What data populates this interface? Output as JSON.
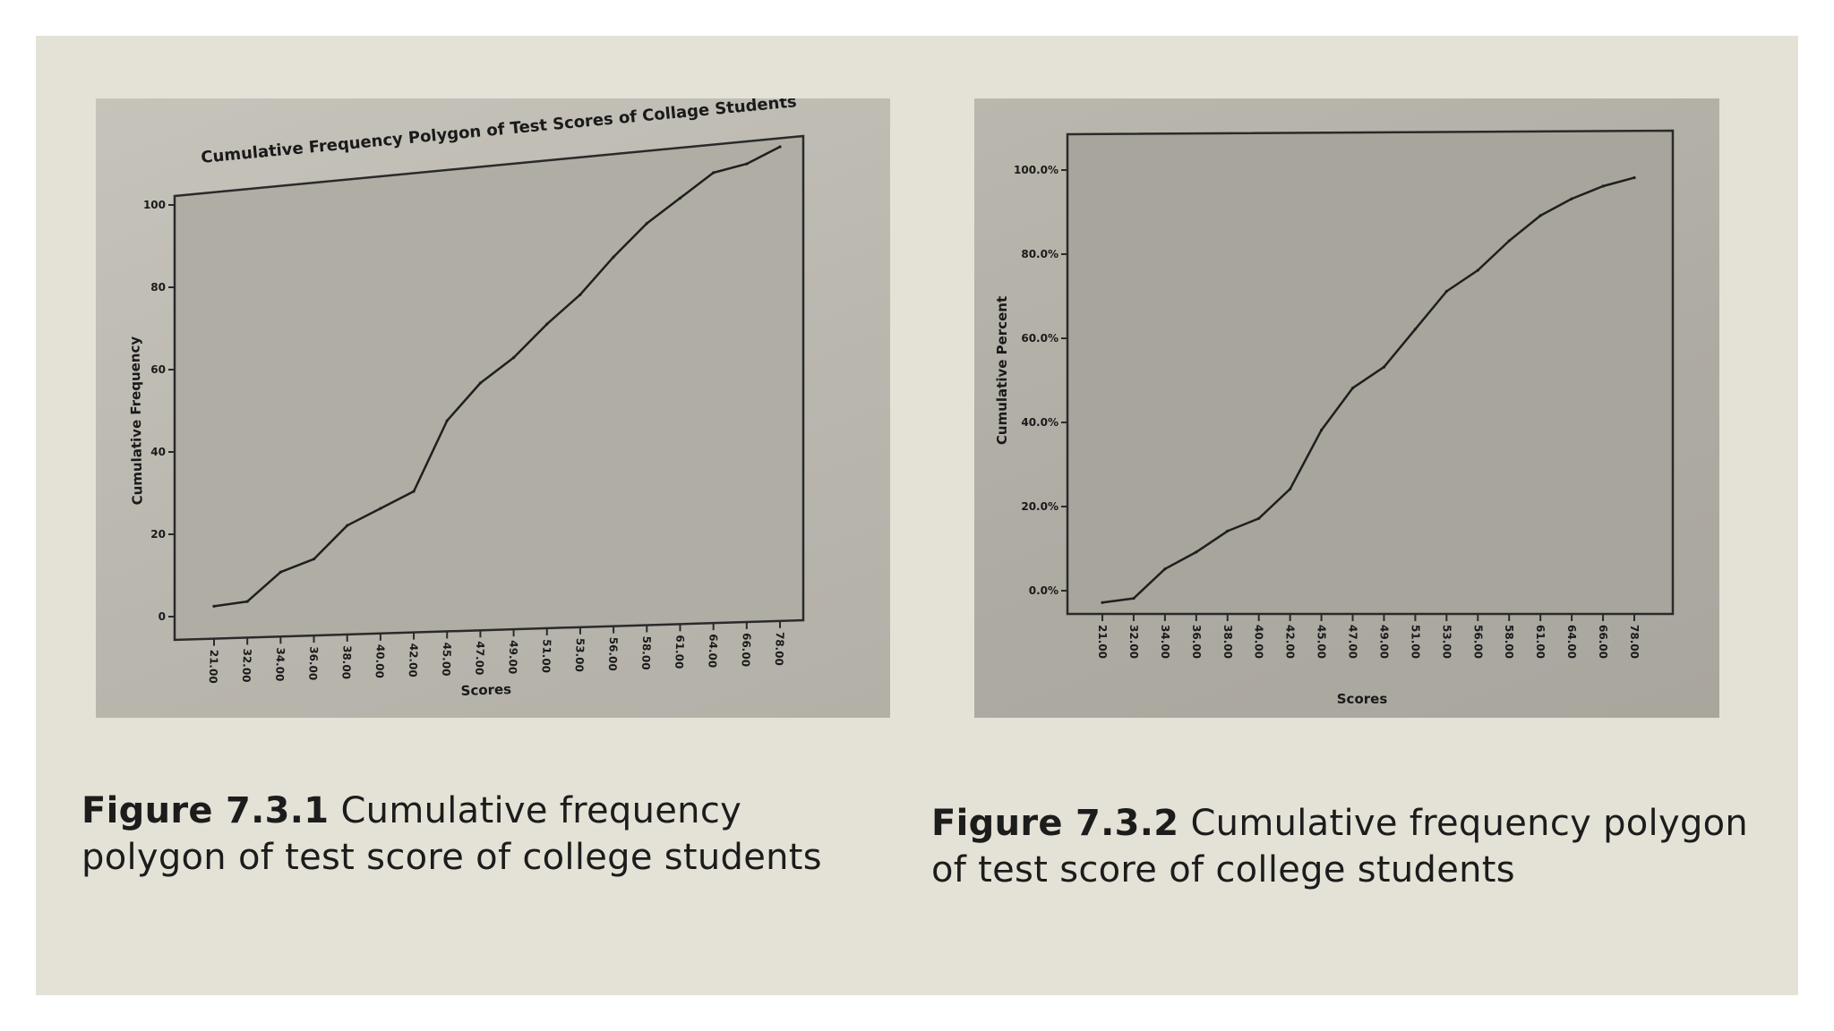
{
  "figures": [
    {
      "caption_label": "Figure 7.3.1",
      "caption_text": "Cumulative frequency polygon of test score of college students"
    },
    {
      "caption_label": "Figure 7.3.2",
      "caption_text": "Cumulative frequency polygon of test score of college students"
    }
  ],
  "chart_data": [
    {
      "type": "line",
      "title": "Cumulative Frequency Polygon of Test Scores of Collage Students",
      "xlabel": "Scores",
      "ylabel": "Cumulative Frequency",
      "x": [
        "21.00",
        "32.00",
        "34.00",
        "36.00",
        "38.00",
        "40.00",
        "42.00",
        "45.00",
        "47.00",
        "49.00",
        "51.00",
        "53.00",
        "56.00",
        "58.00",
        "61.00",
        "64.00",
        "66.00",
        "78.00"
      ],
      "y_ticks": [
        "0",
        "20",
        "40",
        "60",
        "80",
        "100"
      ],
      "ylim": [
        0,
        100
      ],
      "grid": false,
      "series": [
        {
          "values": [
            1,
            2,
            9,
            12,
            20,
            24,
            28,
            45,
            54,
            60,
            68,
            75,
            84,
            92,
            98,
            104,
            106,
            110
          ]
        }
      ]
    },
    {
      "type": "line",
      "title": "",
      "xlabel": "Scores",
      "ylabel": "Cumulative Percent",
      "x": [
        "21.00",
        "32.00",
        "34.00",
        "36.00",
        "38.00",
        "40.00",
        "42.00",
        "45.00",
        "47.00",
        "49.00",
        "51.00",
        "53.00",
        "56.00",
        "58.00",
        "61.00",
        "64.00",
        "66.00",
        "78.00"
      ],
      "y_ticks": [
        "0.0%",
        "20.0%",
        "40.0%",
        "60.0%",
        "80.0%",
        "100.0%"
      ],
      "ylim": [
        0,
        100
      ],
      "grid": false,
      "series": [
        {
          "values": [
            1,
            2,
            9,
            13,
            18,
            21,
            28,
            42,
            52,
            57,
            66,
            75,
            80,
            87,
            93,
            97,
            100,
            102
          ]
        }
      ]
    }
  ]
}
